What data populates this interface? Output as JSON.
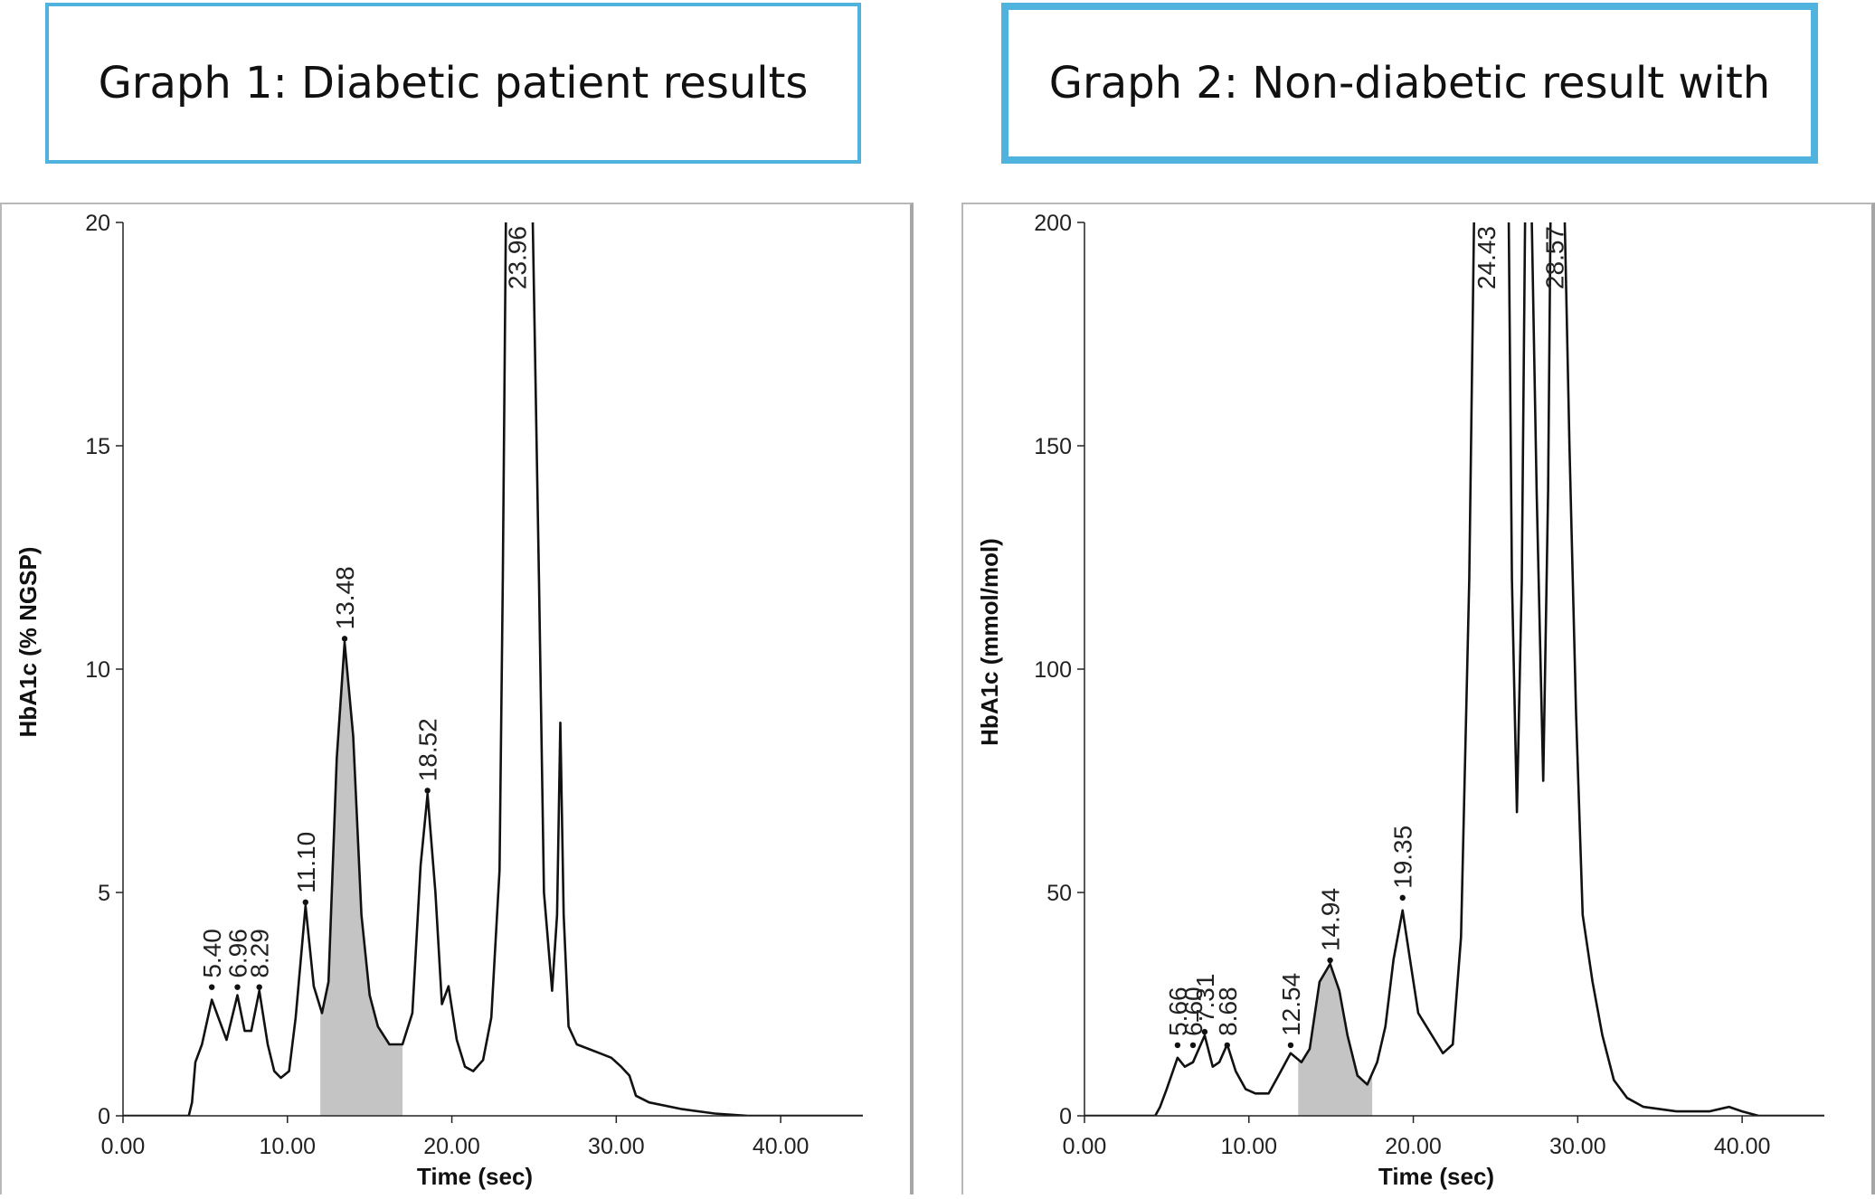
{
  "titles": {
    "graph1": "Graph 1: Diabetic patient results",
    "graph2": "Graph 2: Non-diabetic result with"
  },
  "colors": {
    "title_border": "#4fb3de",
    "trace": "#111111",
    "shade": "#c4c4c4",
    "axis": "#222222"
  },
  "chart_data": [
    {
      "type": "line",
      "title": "Graph 1: Diabetic patient results",
      "xlabel": "Time (sec)",
      "ylabel": "HbA1c (% NGSP)",
      "xlim": [
        0,
        45
      ],
      "ylim": [
        0,
        20
      ],
      "xticks": [
        "0.00",
        "10.00",
        "20.00",
        "30.00",
        "40.00"
      ],
      "yticks": [
        "0",
        "5",
        "10",
        "15",
        "20"
      ],
      "grid": false,
      "shaded_peak": {
        "x_start": 12.0,
        "x_end": 17.0,
        "apex": 13.48
      },
      "peak_labels": [
        {
          "label": "5.40",
          "x": 5.4,
          "y": 2.8
        },
        {
          "label": "6.96",
          "x": 6.96,
          "y": 2.8
        },
        {
          "label": "8.29",
          "x": 8.29,
          "y": 2.8
        },
        {
          "label": "11.10",
          "x": 11.1,
          "y": 4.7
        },
        {
          "label": "13.48",
          "x": 13.48,
          "y": 10.6
        },
        {
          "label": "18.52",
          "x": 18.52,
          "y": 7.2
        },
        {
          "label": "23.96",
          "x": 23.96,
          "y": 20
        }
      ],
      "trace": [
        [
          0,
          0
        ],
        [
          4.0,
          0
        ],
        [
          4.2,
          0.3
        ],
        [
          4.4,
          1.2
        ],
        [
          4.8,
          1.6
        ],
        [
          5.4,
          2.6
        ],
        [
          5.8,
          2.2
        ],
        [
          6.3,
          1.7
        ],
        [
          6.96,
          2.7
        ],
        [
          7.4,
          1.9
        ],
        [
          7.8,
          1.9
        ],
        [
          8.29,
          2.8
        ],
        [
          8.8,
          1.6
        ],
        [
          9.2,
          1.0
        ],
        [
          9.6,
          0.85
        ],
        [
          10.1,
          1.0
        ],
        [
          10.5,
          2.2
        ],
        [
          11.1,
          4.7
        ],
        [
          11.6,
          2.9
        ],
        [
          12.1,
          2.3
        ],
        [
          12.5,
          3.0
        ],
        [
          13.0,
          8.0
        ],
        [
          13.48,
          10.6
        ],
        [
          14.0,
          8.5
        ],
        [
          14.5,
          4.5
        ],
        [
          15.0,
          2.7
        ],
        [
          15.5,
          2.0
        ],
        [
          16.2,
          1.6
        ],
        [
          17.0,
          1.6
        ],
        [
          17.6,
          2.3
        ],
        [
          18.1,
          5.6
        ],
        [
          18.52,
          7.2
        ],
        [
          19.0,
          5.0
        ],
        [
          19.4,
          2.5
        ],
        [
          19.8,
          2.9
        ],
        [
          20.3,
          1.7
        ],
        [
          20.8,
          1.1
        ],
        [
          21.3,
          1.0
        ],
        [
          21.9,
          1.25
        ],
        [
          22.4,
          2.2
        ],
        [
          22.9,
          5.5
        ],
        [
          23.1,
          12.0
        ],
        [
          23.3,
          20.5
        ],
        [
          24.9,
          20.5
        ],
        [
          25.3,
          12.0
        ],
        [
          25.6,
          5.0
        ],
        [
          26.1,
          2.8
        ],
        [
          26.4,
          4.5
        ],
        [
          26.6,
          8.8
        ],
        [
          26.8,
          4.5
        ],
        [
          27.1,
          2.0
        ],
        [
          27.6,
          1.6
        ],
        [
          28.3,
          1.5
        ],
        [
          29.0,
          1.4
        ],
        [
          29.7,
          1.3
        ],
        [
          30.3,
          1.1
        ],
        [
          30.8,
          0.9
        ],
        [
          31.2,
          0.45
        ],
        [
          32.0,
          0.3
        ],
        [
          34.0,
          0.15
        ],
        [
          36.0,
          0.05
        ],
        [
          38.0,
          0
        ],
        [
          45.0,
          0
        ]
      ]
    },
    {
      "type": "line",
      "title": "Graph 2: Non-diabetic result with",
      "xlabel": "Time (sec)",
      "ylabel": "HbA1c (mmol/mol)",
      "xlim": [
        0,
        45
      ],
      "ylim": [
        0,
        200
      ],
      "xticks": [
        "0.00",
        "10.00",
        "20.00",
        "30.00",
        "40.00"
      ],
      "yticks": [
        "0",
        "50",
        "100",
        "150",
        "200"
      ],
      "grid": false,
      "shaded_peak": {
        "x_start": 13.0,
        "x_end": 17.5,
        "apex": 14.94
      },
      "peak_labels": [
        {
          "label": "5.66",
          "x": 5.66,
          "y": 15
        },
        {
          "label": "6.60",
          "x": 6.6,
          "y": 15
        },
        {
          "label": "7.31",
          "x": 7.31,
          "y": 18
        },
        {
          "label": "8.68",
          "x": 8.68,
          "y": 15
        },
        {
          "label": "12.54",
          "x": 12.54,
          "y": 15
        },
        {
          "label": "14.94",
          "x": 14.94,
          "y": 34
        },
        {
          "label": "19.35",
          "x": 19.35,
          "y": 48
        },
        {
          "label": "24.43",
          "x": 24.43,
          "y": 200
        },
        {
          "label": "28.57",
          "x": 28.57,
          "y": 200
        }
      ],
      "trace": [
        [
          0,
          0
        ],
        [
          4.3,
          0
        ],
        [
          4.6,
          2
        ],
        [
          5.0,
          6
        ],
        [
          5.66,
          13
        ],
        [
          6.1,
          11
        ],
        [
          6.6,
          12
        ],
        [
          7.31,
          18
        ],
        [
          7.8,
          11
        ],
        [
          8.2,
          12
        ],
        [
          8.68,
          16
        ],
        [
          9.2,
          10
        ],
        [
          9.8,
          6
        ],
        [
          10.4,
          5
        ],
        [
          11.2,
          5
        ],
        [
          11.8,
          9
        ],
        [
          12.54,
          14
        ],
        [
          13.2,
          12
        ],
        [
          13.7,
          15
        ],
        [
          14.3,
          30
        ],
        [
          14.94,
          34
        ],
        [
          15.5,
          28
        ],
        [
          16.0,
          18
        ],
        [
          16.6,
          9
        ],
        [
          17.2,
          7
        ],
        [
          17.8,
          12
        ],
        [
          18.3,
          20
        ],
        [
          18.8,
          35
        ],
        [
          19.35,
          46
        ],
        [
          19.8,
          35
        ],
        [
          20.3,
          23
        ],
        [
          20.8,
          20
        ],
        [
          21.3,
          17
        ],
        [
          21.8,
          14
        ],
        [
          22.4,
          16
        ],
        [
          22.9,
          40
        ],
        [
          23.4,
          120
        ],
        [
          23.7,
          202
        ],
        [
          25.8,
          202
        ],
        [
          26.0,
          120
        ],
        [
          26.3,
          68
        ],
        [
          26.6,
          120
        ],
        [
          26.8,
          202
        ],
        [
          27.2,
          202
        ],
        [
          27.5,
          140
        ],
        [
          27.9,
          75
        ],
        [
          28.2,
          140
        ],
        [
          28.35,
          202
        ],
        [
          29.2,
          202
        ],
        [
          29.5,
          150
        ],
        [
          29.9,
          90
        ],
        [
          30.3,
          45
        ],
        [
          30.9,
          30
        ],
        [
          31.5,
          18
        ],
        [
          32.2,
          8
        ],
        [
          33.0,
          4
        ],
        [
          34.0,
          2
        ],
        [
          36.0,
          1
        ],
        [
          38.0,
          1
        ],
        [
          39.2,
          2
        ],
        [
          40.0,
          1
        ],
        [
          41.0,
          0
        ],
        [
          45.0,
          0
        ]
      ]
    }
  ]
}
